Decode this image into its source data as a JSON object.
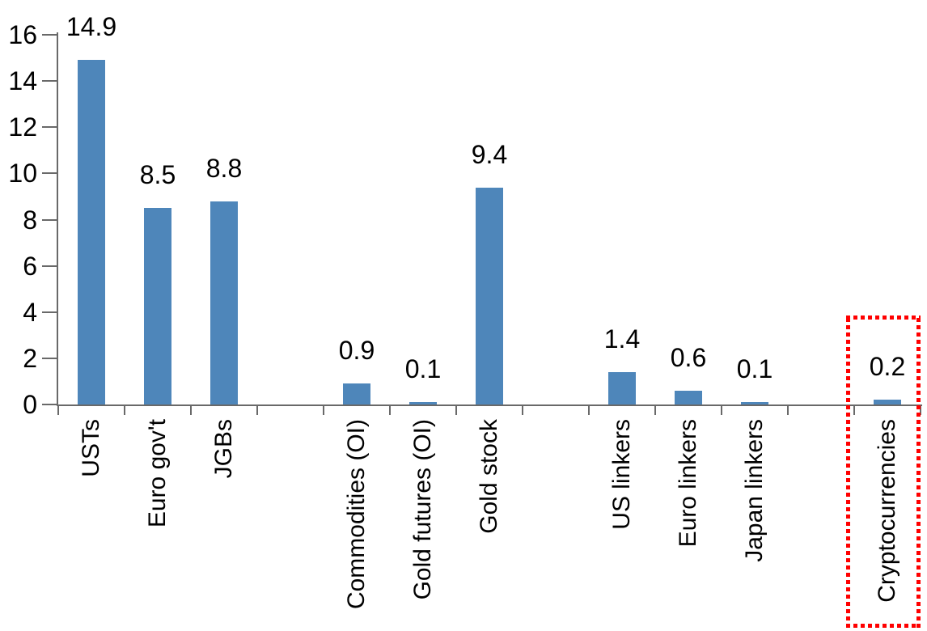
{
  "chart_data": {
    "type": "bar",
    "title": "",
    "xlabel": "",
    "ylabel": "",
    "yticks": [
      "0",
      "2",
      "4",
      "6",
      "8",
      "10",
      "12",
      "14",
      "16"
    ],
    "ylim": [
      0,
      16
    ],
    "grid": false,
    "legend": "none",
    "n_slots": 13,
    "bar_color": "#4e86ba",
    "axis_color": "#696969",
    "text_color": "#000000",
    "bars": [
      {
        "label": "USTs",
        "value": 14.9,
        "value_label": "14.9",
        "slot": 0
      },
      {
        "label": "Euro gov't",
        "value": 8.5,
        "value_label": "8.5",
        "slot": 1
      },
      {
        "label": "JGBs",
        "value": 8.8,
        "value_label": "8.8",
        "slot": 2
      },
      {
        "label": "Commodities (OI)",
        "value": 0.9,
        "value_label": "0.9",
        "slot": 4
      },
      {
        "label": "Gold futures (OI)",
        "value": 0.1,
        "value_label": "0.1",
        "slot": 5
      },
      {
        "label": "Gold stock",
        "value": 9.4,
        "value_label": "9.4",
        "slot": 6
      },
      {
        "label": "US linkers",
        "value": 1.4,
        "value_label": "1.4",
        "slot": 8
      },
      {
        "label": "Euro linkers",
        "value": 0.6,
        "value_label": "0.6",
        "slot": 9
      },
      {
        "label": "Japan linkers",
        "value": 0.1,
        "value_label": "0.1",
        "slot": 10
      },
      {
        "label": "Cryptocurrencies",
        "value": 0.2,
        "value_label": "0.2",
        "slot": 12
      }
    ],
    "highlight": {
      "target": "Cryptocurrencies",
      "border_color": "#ff0000",
      "border_style": "dotted"
    }
  }
}
